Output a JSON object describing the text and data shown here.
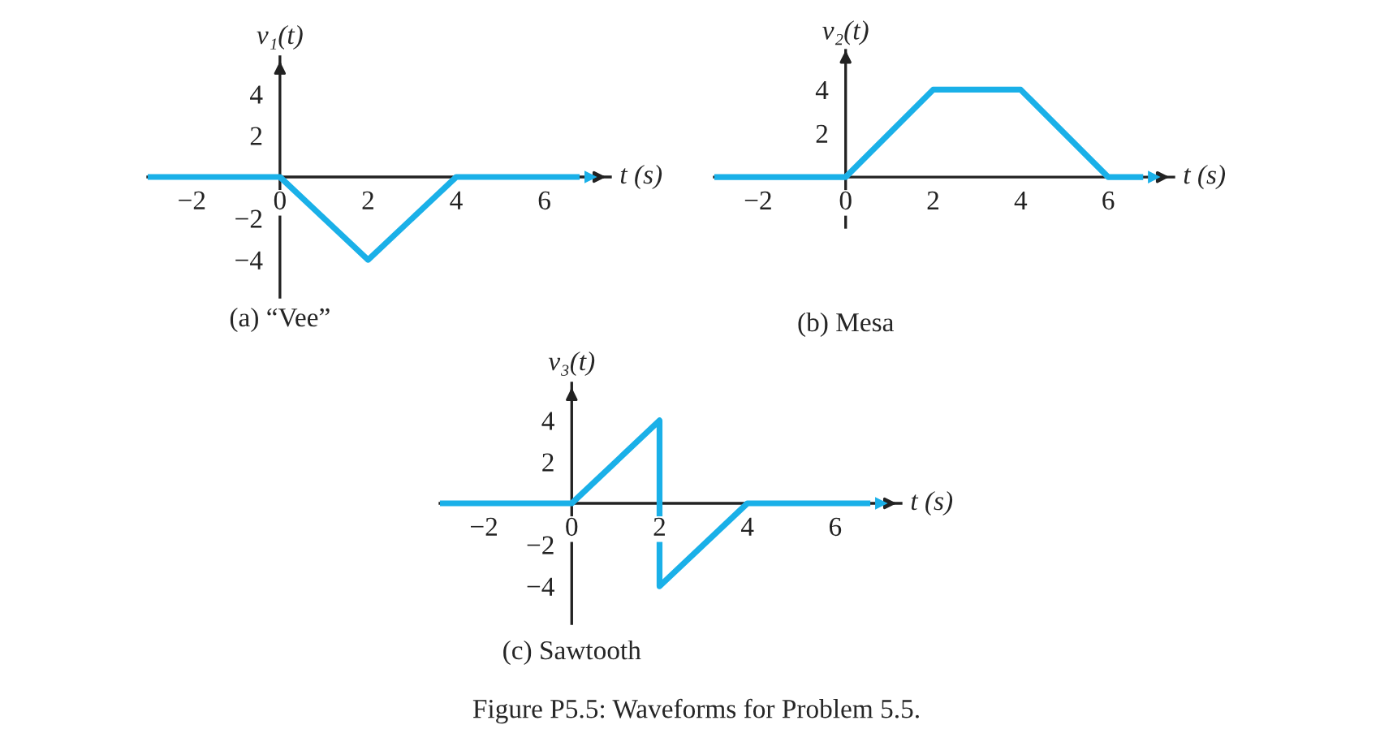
{
  "chart_data": [
    {
      "type": "line",
      "title": "(a) “Vee”",
      "xlabel": "t (s)",
      "ylabel": "v₁(t)",
      "series": [
        {
          "color": "#1ab0e8",
          "x": [
            -3,
            0,
            2,
            4,
            6.8
          ],
          "values": [
            0,
            0,
            -4,
            0,
            0
          ]
        }
      ],
      "xlim": [
        -3,
        7.5
      ],
      "ylim": [
        -5.8,
        5.8
      ],
      "xticks": [
        -2,
        0,
        2,
        4,
        6
      ],
      "yticks": [
        -4,
        -2,
        2,
        4
      ],
      "grid": false
    },
    {
      "type": "line",
      "title": "(b) Mesa",
      "xlabel": "t (s)",
      "ylabel": "v₂(t)",
      "series": [
        {
          "color": "#1ab0e8",
          "x": [
            -3,
            0,
            2,
            4,
            6,
            6.8
          ],
          "values": [
            0,
            0,
            4,
            4,
            0,
            0
          ]
        }
      ],
      "xlim": [
        -3,
        7.5
      ],
      "ylim": [
        -2.3,
        5.8
      ],
      "xticks": [
        -2,
        0,
        2,
        4,
        6
      ],
      "yticks": [
        2,
        4
      ],
      "grid": false
    },
    {
      "type": "line",
      "title": "(c) Sawtooth",
      "xlabel": "t (s)",
      "ylabel": "v₃(t)",
      "series": [
        {
          "color": "#1ab0e8",
          "x": [
            -3,
            0,
            2,
            2,
            4,
            6.8
          ],
          "values": [
            0,
            0,
            4,
            -4,
            0,
            0
          ]
        }
      ],
      "xlim": [
        -3,
        7.5
      ],
      "ylim": [
        -5.8,
        5.8
      ],
      "xticks": [
        -2,
        0,
        2,
        4,
        6
      ],
      "yticks": [
        -4,
        -2,
        2,
        4
      ],
      "grid": false,
      "annotations": [
        "Figure P5.5: Waveforms for Problem 5.5."
      ]
    }
  ]
}
